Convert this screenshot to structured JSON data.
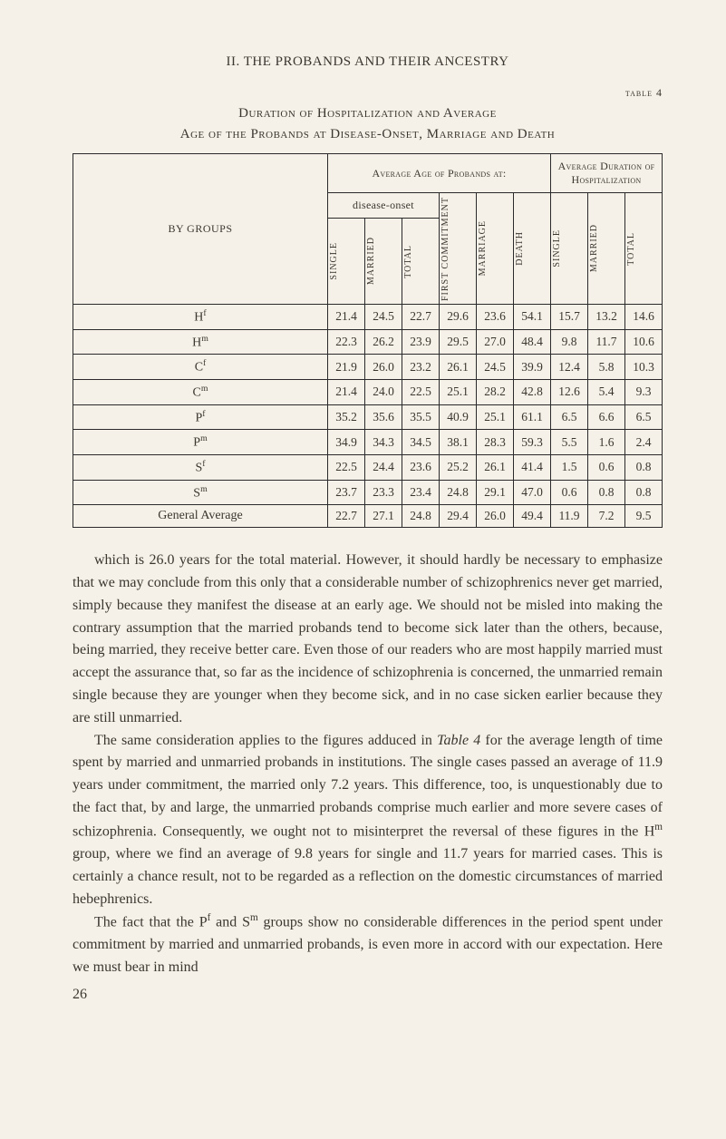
{
  "header": "II. THE PROBANDS AND THEIR ANCESTRY",
  "tableLabel": "table 4",
  "tableTitleLine1": "Duration of Hospitalization and Average",
  "tableTitleLine2": "Age of the Probands at Disease-Onset, Marriage and Death",
  "colHeaders": {
    "byGroups": "BY GROUPS",
    "avgAge": "Average Age of Probands at:",
    "avgDur": "Average Duration of Hospitalization",
    "diseaseOnset": "disease-onset",
    "single": "SINGLE",
    "married": "MARRIED",
    "total": "TOTAL",
    "firstCommit": "FIRST COMMITMENT",
    "marriage": "MARRIAGE",
    "death": "DEATH"
  },
  "rows": [
    {
      "label": "H",
      "sup": "f",
      "v": [
        "21.4",
        "24.5",
        "22.7",
        "29.6",
        "23.6",
        "54.1",
        "15.7",
        "13.2",
        "14.6"
      ]
    },
    {
      "label": "H",
      "sup": "m",
      "v": [
        "22.3",
        "26.2",
        "23.9",
        "29.5",
        "27.0",
        "48.4",
        "9.8",
        "11.7",
        "10.6"
      ]
    },
    {
      "label": "C",
      "sup": "f",
      "v": [
        "21.9",
        "26.0",
        "23.2",
        "26.1",
        "24.5",
        "39.9",
        "12.4",
        "5.8",
        "10.3"
      ]
    },
    {
      "label": "C",
      "sup": "m",
      "v": [
        "21.4",
        "24.0",
        "22.5",
        "25.1",
        "28.2",
        "42.8",
        "12.6",
        "5.4",
        "9.3"
      ]
    },
    {
      "label": "P",
      "sup": "f",
      "v": [
        "35.2",
        "35.6",
        "35.5",
        "40.9",
        "25.1",
        "61.1",
        "6.5",
        "6.6",
        "6.5"
      ]
    },
    {
      "label": "P",
      "sup": "m",
      "v": [
        "34.9",
        "34.3",
        "34.5",
        "38.1",
        "28.3",
        "59.3",
        "5.5",
        "1.6",
        "2.4"
      ]
    },
    {
      "label": "S",
      "sup": "f",
      "v": [
        "22.5",
        "24.4",
        "23.6",
        "25.2",
        "26.1",
        "41.4",
        "1.5",
        "0.6",
        "0.8"
      ]
    },
    {
      "label": "S",
      "sup": "m",
      "v": [
        "23.7",
        "23.3",
        "23.4",
        "24.8",
        "29.1",
        "47.0",
        "0.6",
        "0.8",
        "0.8"
      ]
    }
  ],
  "generalRow": {
    "label": "General Average",
    "v": [
      "22.7",
      "27.1",
      "24.8",
      "29.4",
      "26.0",
      "49.4",
      "11.9",
      "7.2",
      "9.5"
    ]
  },
  "para1a": "which is 26.0 years for the total material. However, it should hardly be necessary to emphasize that we may conclude from this only that a considerable number of schizophrenics never get married, simply because they manifest the disease at an early age. We should not be misled into making the contrary assumption that the married probands tend to become sick later than the others, because, being married, they receive better care. Even those of our readers who are most happily married must accept the assurance that, so far as the incidence of schizophrenia is concerned, the unmarried remain single because they are younger when they become sick, and in no case sicken earlier because they are still unmarried.",
  "para2a": "The same consideration applies to the figures adduced in ",
  "para2Italic": "Table 4",
  "para2b": " for the average length of time spent by married and unmarried probands in institutions. The single cases passed an average of 11.9 years under commitment, the married only 7.2 years. This difference, too, is unquestionably due to the fact that, by and large, the unmarried probands comprise much earlier and more severe cases of schizophrenia. Consequently, we ought not to misinterpret the reversal of these figures in the H",
  "para2sup1": "m",
  "para2c": " group, where we find an average of 9.8 years for single and 11.7 years for married cases. This is certainly a chance result, not to be regarded as a reflection on the domestic circumstances of married hebephrenics.",
  "para3a": "The fact that the P",
  "para3sup1": "f",
  "para3b": " and S",
  "para3sup2": "m",
  "para3c": " groups show no considerable differences in the period spent under commitment by married and unmarried probands, is even more in accord with our expectation. Here we must bear in mind",
  "pageNumber": "26"
}
